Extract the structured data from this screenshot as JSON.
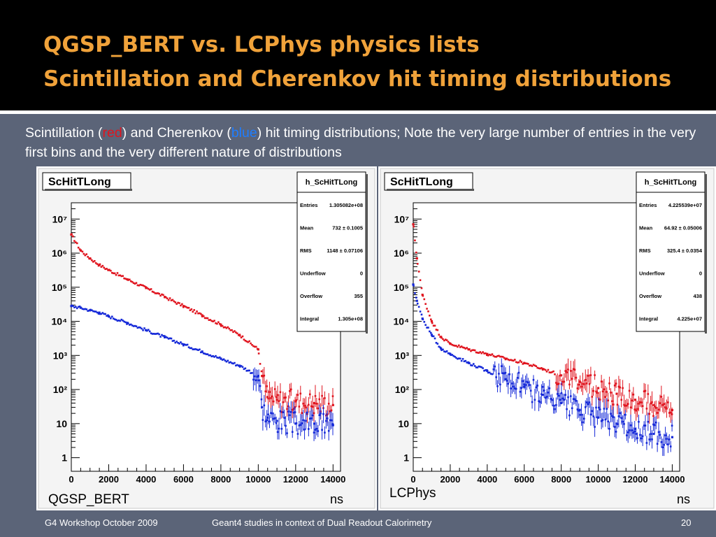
{
  "slide": {
    "title_line1": "QGSP_BERT vs. LCPhys physics lists",
    "title_line2": "Scintillation and Cherenkov hit timing distributions",
    "description": {
      "part1": "Scintillation (",
      "red_word": "red",
      "part2": ") and Cherenkov (",
      "blue_word": "blue",
      "part3": ") hit timing distributions; Note the very large number of entries in the very first bins and the very different nature of distributions"
    },
    "footer_left": "G4 Workshop October 2009",
    "footer_center": "Geant4 studies in context of Dual Readout Calorimetry",
    "page_number": "20"
  },
  "colors": {
    "background": "#5b6478",
    "title": "#f0a23a",
    "red_series": "#e0141e",
    "blue_series": "#1428d8",
    "red_word": "#e0141e",
    "blue_word": "#1e7dff"
  },
  "chart_data": [
    {
      "type": "scatter",
      "title": "ScHitTLong",
      "panel_label": "QGSP_BERT",
      "xlabel": "ns",
      "log_y": true,
      "xlim": [
        0,
        14400
      ],
      "ylim": [
        0.4,
        30000000
      ],
      "x_ticks": [
        "0",
        "2000",
        "4000",
        "6000",
        "8000",
        "10000",
        "12000",
        "14000"
      ],
      "y_ticks": [
        "1",
        "10",
        "10²",
        "10³",
        "10⁴",
        "10⁵",
        "10⁶",
        "10⁷"
      ],
      "stats": {
        "name": "h_ScHitTLong",
        "rows": [
          {
            "label": "Entries",
            "value": "1.305082e+08"
          },
          {
            "label": "Mean",
            "value": "732 ± 0.1005"
          },
          {
            "label": "RMS",
            "value": "1148 ± 0.07106"
          },
          {
            "label": "Underflow",
            "value": "0"
          },
          {
            "label": "Overflow",
            "value": "355"
          },
          {
            "label": "Integral",
            "value": "1.305e+08"
          }
        ]
      },
      "series": [
        {
          "color": "red",
          "points": [
            [
              0,
              3500000
            ],
            [
              500,
              1200000
            ],
            [
              1000,
              700000
            ],
            [
              1500,
              450000
            ],
            [
              2000,
              320000
            ],
            [
              3000,
              170000
            ],
            [
              4000,
              95000
            ],
            [
              5000,
              52000
            ],
            [
              6000,
              28000
            ],
            [
              7000,
              15000
            ],
            [
              8000,
              8000
            ],
            [
              9000,
              4000
            ],
            [
              10000,
              1500
            ],
            [
              10200,
              250
            ],
            [
              10500,
              60
            ],
            [
              11000,
              50
            ],
            [
              12000,
              45
            ],
            [
              13000,
              40
            ],
            [
              14000,
              35
            ]
          ]
        },
        {
          "color": "blue",
          "points": [
            [
              0,
              28000
            ],
            [
              500,
              25000
            ],
            [
              1000,
              21000
            ],
            [
              1500,
              18000
            ],
            [
              2000,
              14000
            ],
            [
              3000,
              9000
            ],
            [
              4000,
              5500
            ],
            [
              5000,
              3400
            ],
            [
              6000,
              2100
            ],
            [
              7000,
              1300
            ],
            [
              8000,
              800
            ],
            [
              9000,
              500
            ],
            [
              10000,
              250
            ],
            [
              10200,
              30
            ],
            [
              10500,
              15
            ],
            [
              11000,
              12
            ],
            [
              12000,
              10
            ],
            [
              13000,
              10
            ],
            [
              14000,
              9
            ]
          ]
        }
      ]
    },
    {
      "type": "scatter",
      "title": "ScHitTLong",
      "panel_label": "LCPhys",
      "xlabel": "ns",
      "log_y": true,
      "xlim": [
        0,
        14400
      ],
      "ylim": [
        0.4,
        30000000
      ],
      "x_ticks": [
        "0",
        "2000",
        "4000",
        "6000",
        "8000",
        "10000",
        "12000",
        "14000"
      ],
      "y_ticks": [
        "1",
        "10",
        "10²",
        "10³",
        "10⁴",
        "10⁵",
        "10⁶",
        "10⁷"
      ],
      "stats": {
        "name": "h_ScHitTLong",
        "rows": [
          {
            "label": "Entries",
            "value": "4.225539e+07"
          },
          {
            "label": "Mean",
            "value": "64.92 ± 0.05006"
          },
          {
            "label": "RMS",
            "value": "325.4 ± 0.0354"
          },
          {
            "label": "Underflow",
            "value": "0"
          },
          {
            "label": "Overflow",
            "value": "438"
          },
          {
            "label": "Integral",
            "value": "4.225e+07"
          }
        ]
      },
      "series": [
        {
          "color": "red",
          "points": [
            [
              0,
              7000000
            ],
            [
              200,
              700000
            ],
            [
              500,
              60000
            ],
            [
              1000,
              10000
            ],
            [
              1500,
              3500
            ],
            [
              2000,
              2200
            ],
            [
              3000,
              1500
            ],
            [
              4000,
              1100
            ],
            [
              5000,
              800
            ],
            [
              6000,
              600
            ],
            [
              7000,
              400
            ],
            [
              8000,
              260
            ],
            [
              9000,
              170
            ],
            [
              10000,
              110
            ],
            [
              11000,
              75
            ],
            [
              12000,
              50
            ],
            [
              13000,
              35
            ],
            [
              14000,
              25
            ]
          ]
        },
        {
          "color": "blue",
          "points": [
            [
              0,
              120000
            ],
            [
              200,
              40000
            ],
            [
              500,
              12000
            ],
            [
              1000,
              4000
            ],
            [
              1500,
              1600
            ],
            [
              2000,
              1100
            ],
            [
              3000,
              600
            ],
            [
              4000,
              350
            ],
            [
              5000,
              200
            ],
            [
              6000,
              120
            ],
            [
              7000,
              70
            ],
            [
              8000,
              40
            ],
            [
              9000,
              25
            ],
            [
              10000,
              15
            ],
            [
              11000,
              10
            ],
            [
              12000,
              7
            ],
            [
              13000,
              5
            ],
            [
              14000,
              4
            ]
          ]
        }
      ]
    }
  ]
}
